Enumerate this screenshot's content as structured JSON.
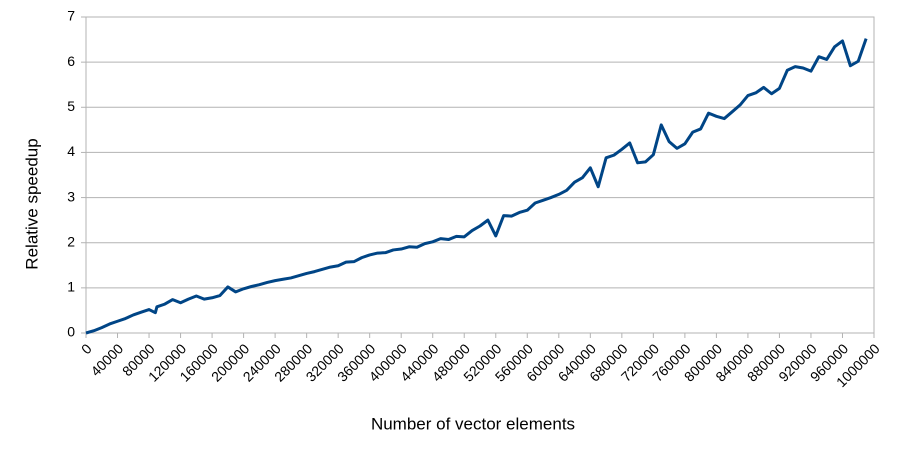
{
  "chart_data": {
    "type": "line",
    "xlabel": "Number of vector elements",
    "ylabel": "Relative speedup",
    "x": [
      0,
      10000,
      20000,
      30000,
      40000,
      50000,
      60000,
      70000,
      80000,
      88000,
      90000,
      100000,
      110000,
      120000,
      130000,
      140000,
      150000,
      160000,
      170000,
      180000,
      190000,
      200000,
      210000,
      220000,
      230000,
      240000,
      250000,
      260000,
      270000,
      280000,
      290000,
      300000,
      310000,
      320000,
      330000,
      340000,
      350000,
      360000,
      370000,
      380000,
      390000,
      400000,
      410000,
      420000,
      430000,
      440000,
      450000,
      460000,
      470000,
      480000,
      490000,
      500000,
      510000,
      520000,
      530000,
      540000,
      550000,
      560000,
      570000,
      580000,
      590000,
      600000,
      610000,
      620000,
      630000,
      640000,
      650000,
      660000,
      670000,
      680000,
      690000,
      700000,
      710000,
      720000,
      730000,
      740000,
      750000,
      760000,
      770000,
      780000,
      790000,
      800000,
      810000,
      820000,
      830000,
      840000,
      850000,
      860000,
      870000,
      880000,
      890000,
      900000,
      910000,
      920000,
      930000,
      940000,
      950000,
      960000,
      970000,
      980000,
      990000
    ],
    "series": [
      {
        "name": "Relative speedup",
        "color": "#004586",
        "values": [
          0,
          0.05,
          0.12,
          0.2,
          0.26,
          0.32,
          0.4,
          0.46,
          0.52,
          0.45,
          0.58,
          0.64,
          0.74,
          0.67,
          0.75,
          0.82,
          0.75,
          0.78,
          0.83,
          1.02,
          0.91,
          0.98,
          1.03,
          1.07,
          1.12,
          1.16,
          1.19,
          1.22,
          1.27,
          1.32,
          1.36,
          1.41,
          1.46,
          1.49,
          1.57,
          1.58,
          1.67,
          1.73,
          1.77,
          1.78,
          1.84,
          1.86,
          1.91,
          1.9,
          1.98,
          2.02,
          2.09,
          2.07,
          2.14,
          2.13,
          2.27,
          2.37,
          2.5,
          2.15,
          2.6,
          2.59,
          2.67,
          2.72,
          2.88,
          2.94,
          3.0,
          3.07,
          3.16,
          3.34,
          3.44,
          3.66,
          3.24,
          3.88,
          3.94,
          4.07,
          4.21,
          3.77,
          3.79,
          3.95,
          4.61,
          4.24,
          4.09,
          4.19,
          4.45,
          4.52,
          4.87,
          4.8,
          4.75,
          4.9,
          5.05,
          5.26,
          5.32,
          5.44,
          5.3,
          5.42,
          5.82,
          5.9,
          5.87,
          5.8,
          6.12,
          6.06,
          6.34,
          6.47,
          5.92,
          6.02,
          6.52
        ]
      }
    ],
    "xlim": [
      0,
      1000000
    ],
    "xticks": [
      0,
      40000,
      80000,
      120000,
      160000,
      200000,
      240000,
      280000,
      320000,
      360000,
      400000,
      440000,
      480000,
      520000,
      560000,
      600000,
      640000,
      680000,
      720000,
      760000,
      800000,
      840000,
      880000,
      920000,
      960000,
      1000000
    ],
    "ylim": [
      0,
      7
    ],
    "yticks": [
      0,
      1,
      2,
      3,
      4,
      5,
      6,
      7
    ],
    "grid": true
  }
}
